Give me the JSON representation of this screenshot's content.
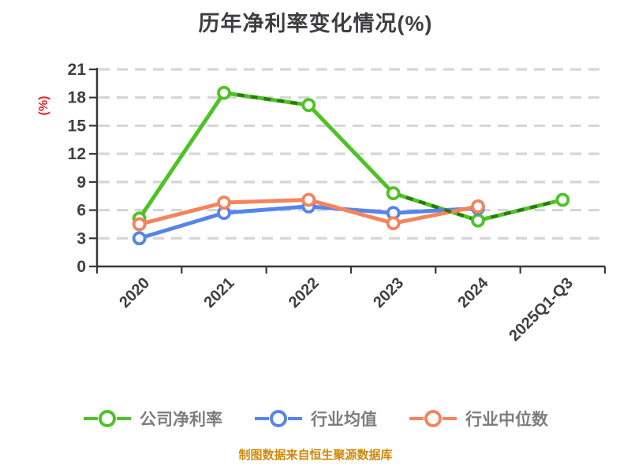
{
  "chart_data": {
    "type": "line",
    "title": "历年净利率变化情况(%)",
    "ylabel": "(%)",
    "ylabel_color": "#e62129",
    "categories": [
      "2020",
      "2021",
      "2022",
      "2023",
      "2024",
      "2025Q1-Q3"
    ],
    "yticks": [
      0,
      3,
      6,
      9,
      12,
      15,
      18,
      21
    ],
    "ylim": [
      0,
      21
    ],
    "grid": "horizontal-dashed",
    "legend_position": "bottom",
    "series": [
      {
        "name": "公司净利率",
        "color": "#4fc226",
        "values": [
          5.1,
          18.5,
          17.2,
          7.8,
          4.9,
          7.1
        ],
        "overlay_color": "#2c7a0e",
        "dashed_overlay_segments": [
          [
            1,
            2
          ],
          [
            3,
            4
          ],
          [
            4,
            5
          ]
        ]
      },
      {
        "name": "行业均值",
        "color": "#5585ea",
        "values": [
          3.0,
          5.7,
          6.4,
          5.7,
          6.2,
          null
        ]
      },
      {
        "name": "行业中位数",
        "color": "#f5845c",
        "values": [
          4.5,
          6.8,
          7.1,
          4.6,
          6.4,
          null
        ]
      }
    ]
  },
  "footer": {
    "text": "制图数据来自恒生聚源数据库",
    "color": "#cf8a0b"
  },
  "colors": {
    "background": "#ffffff",
    "title": "#3e3e40",
    "axis": "#38383a",
    "tick_label": "#3f3f41",
    "grid": "#d6d6d6",
    "legend_text": "#7d7d7d"
  }
}
